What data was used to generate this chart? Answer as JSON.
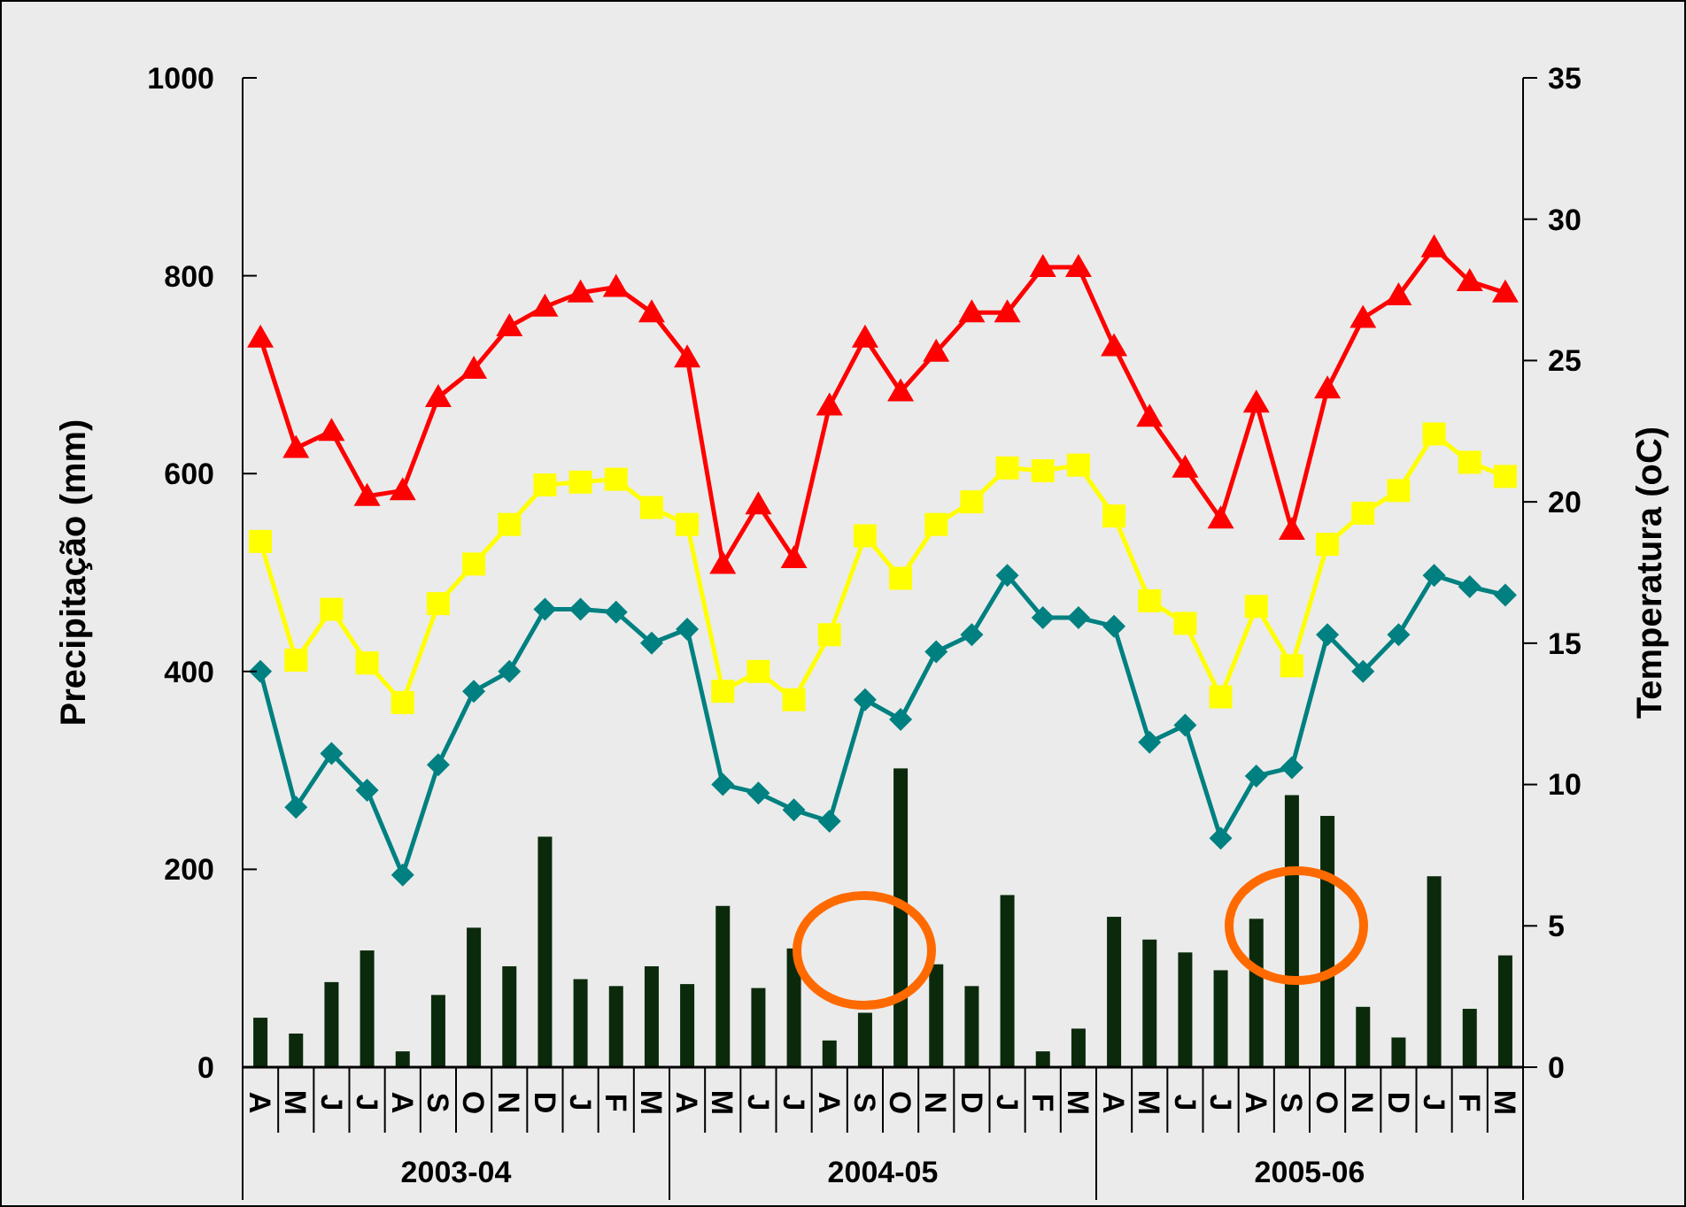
{
  "chart_data": {
    "type": "bar",
    "ylabel": "Precipitação (mm)",
    "y2label": "Temperatura (oC)",
    "categories": [
      "A",
      "M",
      "J",
      "J",
      "A",
      "S",
      "O",
      "N",
      "D",
      "J",
      "F",
      "M",
      "A",
      "M",
      "J",
      "J",
      "A",
      "S",
      "O",
      "N",
      "D",
      "J",
      "F",
      "M",
      "A",
      "M",
      "J",
      "J",
      "A",
      "S",
      "O",
      "N",
      "D",
      "J",
      "F",
      "M"
    ],
    "series": [
      {
        "color": "#0b2a0b",
        "values": [
          50,
          34,
          86,
          118,
          16,
          73,
          141,
          102,
          233,
          89,
          82,
          102,
          84,
          163,
          80,
          120,
          27,
          55,
          302,
          104,
          82,
          174,
          16,
          39,
          152,
          129,
          116,
          98,
          150,
          275,
          254,
          61,
          30,
          193,
          59,
          113
        ]
      },
      {
        "type": "line",
        "axis": "y2",
        "color": "#ff0000",
        "marker": "triangle",
        "values": [
          25.8,
          21.9,
          22.5,
          20.2,
          20.4,
          23.7,
          24.7,
          26.2,
          26.9,
          27.4,
          27.6,
          26.7,
          25.1,
          17.8,
          19.9,
          18.0,
          23.4,
          25.8,
          23.9,
          25.3,
          26.7,
          26.7,
          28.3,
          28.3,
          25.5,
          23.0,
          21.2,
          19.4,
          23.5,
          19.0,
          24.0,
          26.5,
          27.3,
          29.0,
          27.8,
          27.4
        ]
      },
      {
        "type": "line",
        "axis": "y2",
        "color": "#ffff00",
        "marker": "square",
        "values": [
          18.6,
          14.4,
          16.2,
          14.3,
          12.9,
          16.4,
          17.8,
          19.2,
          20.6,
          20.7,
          20.8,
          19.8,
          19.2,
          13.3,
          14.0,
          13.0,
          15.3,
          18.8,
          17.3,
          19.2,
          20.0,
          21.2,
          21.1,
          21.3,
          19.5,
          16.5,
          15.7,
          13.1,
          16.3,
          14.2,
          18.5,
          19.6,
          20.4,
          22.4,
          21.4,
          20.9
        ]
      },
      {
        "type": "line",
        "axis": "y2",
        "color": "#008080",
        "marker": "diamond",
        "values": [
          14.0,
          9.2,
          11.1,
          9.8,
          6.8,
          10.7,
          13.3,
          14.0,
          16.2,
          16.2,
          16.1,
          15.0,
          15.5,
          10.0,
          9.7,
          9.1,
          8.7,
          13.0,
          12.3,
          14.7,
          15.3,
          17.4,
          15.9,
          15.9,
          15.6,
          11.5,
          12.1,
          8.1,
          10.3,
          10.6,
          15.3,
          14.0,
          15.3,
          17.4,
          17.0,
          16.7
        ]
      }
    ],
    "ylim": [
      0,
      1000
    ],
    "yticks": [
      0,
      200,
      400,
      600,
      800,
      1000
    ],
    "y2lim": [
      0,
      35
    ],
    "y2ticks": [
      0,
      5,
      10,
      15,
      20,
      25,
      30,
      35
    ],
    "annotations": [
      "2003-04",
      "2004-05",
      "2005-06"
    ],
    "grid": false
  }
}
